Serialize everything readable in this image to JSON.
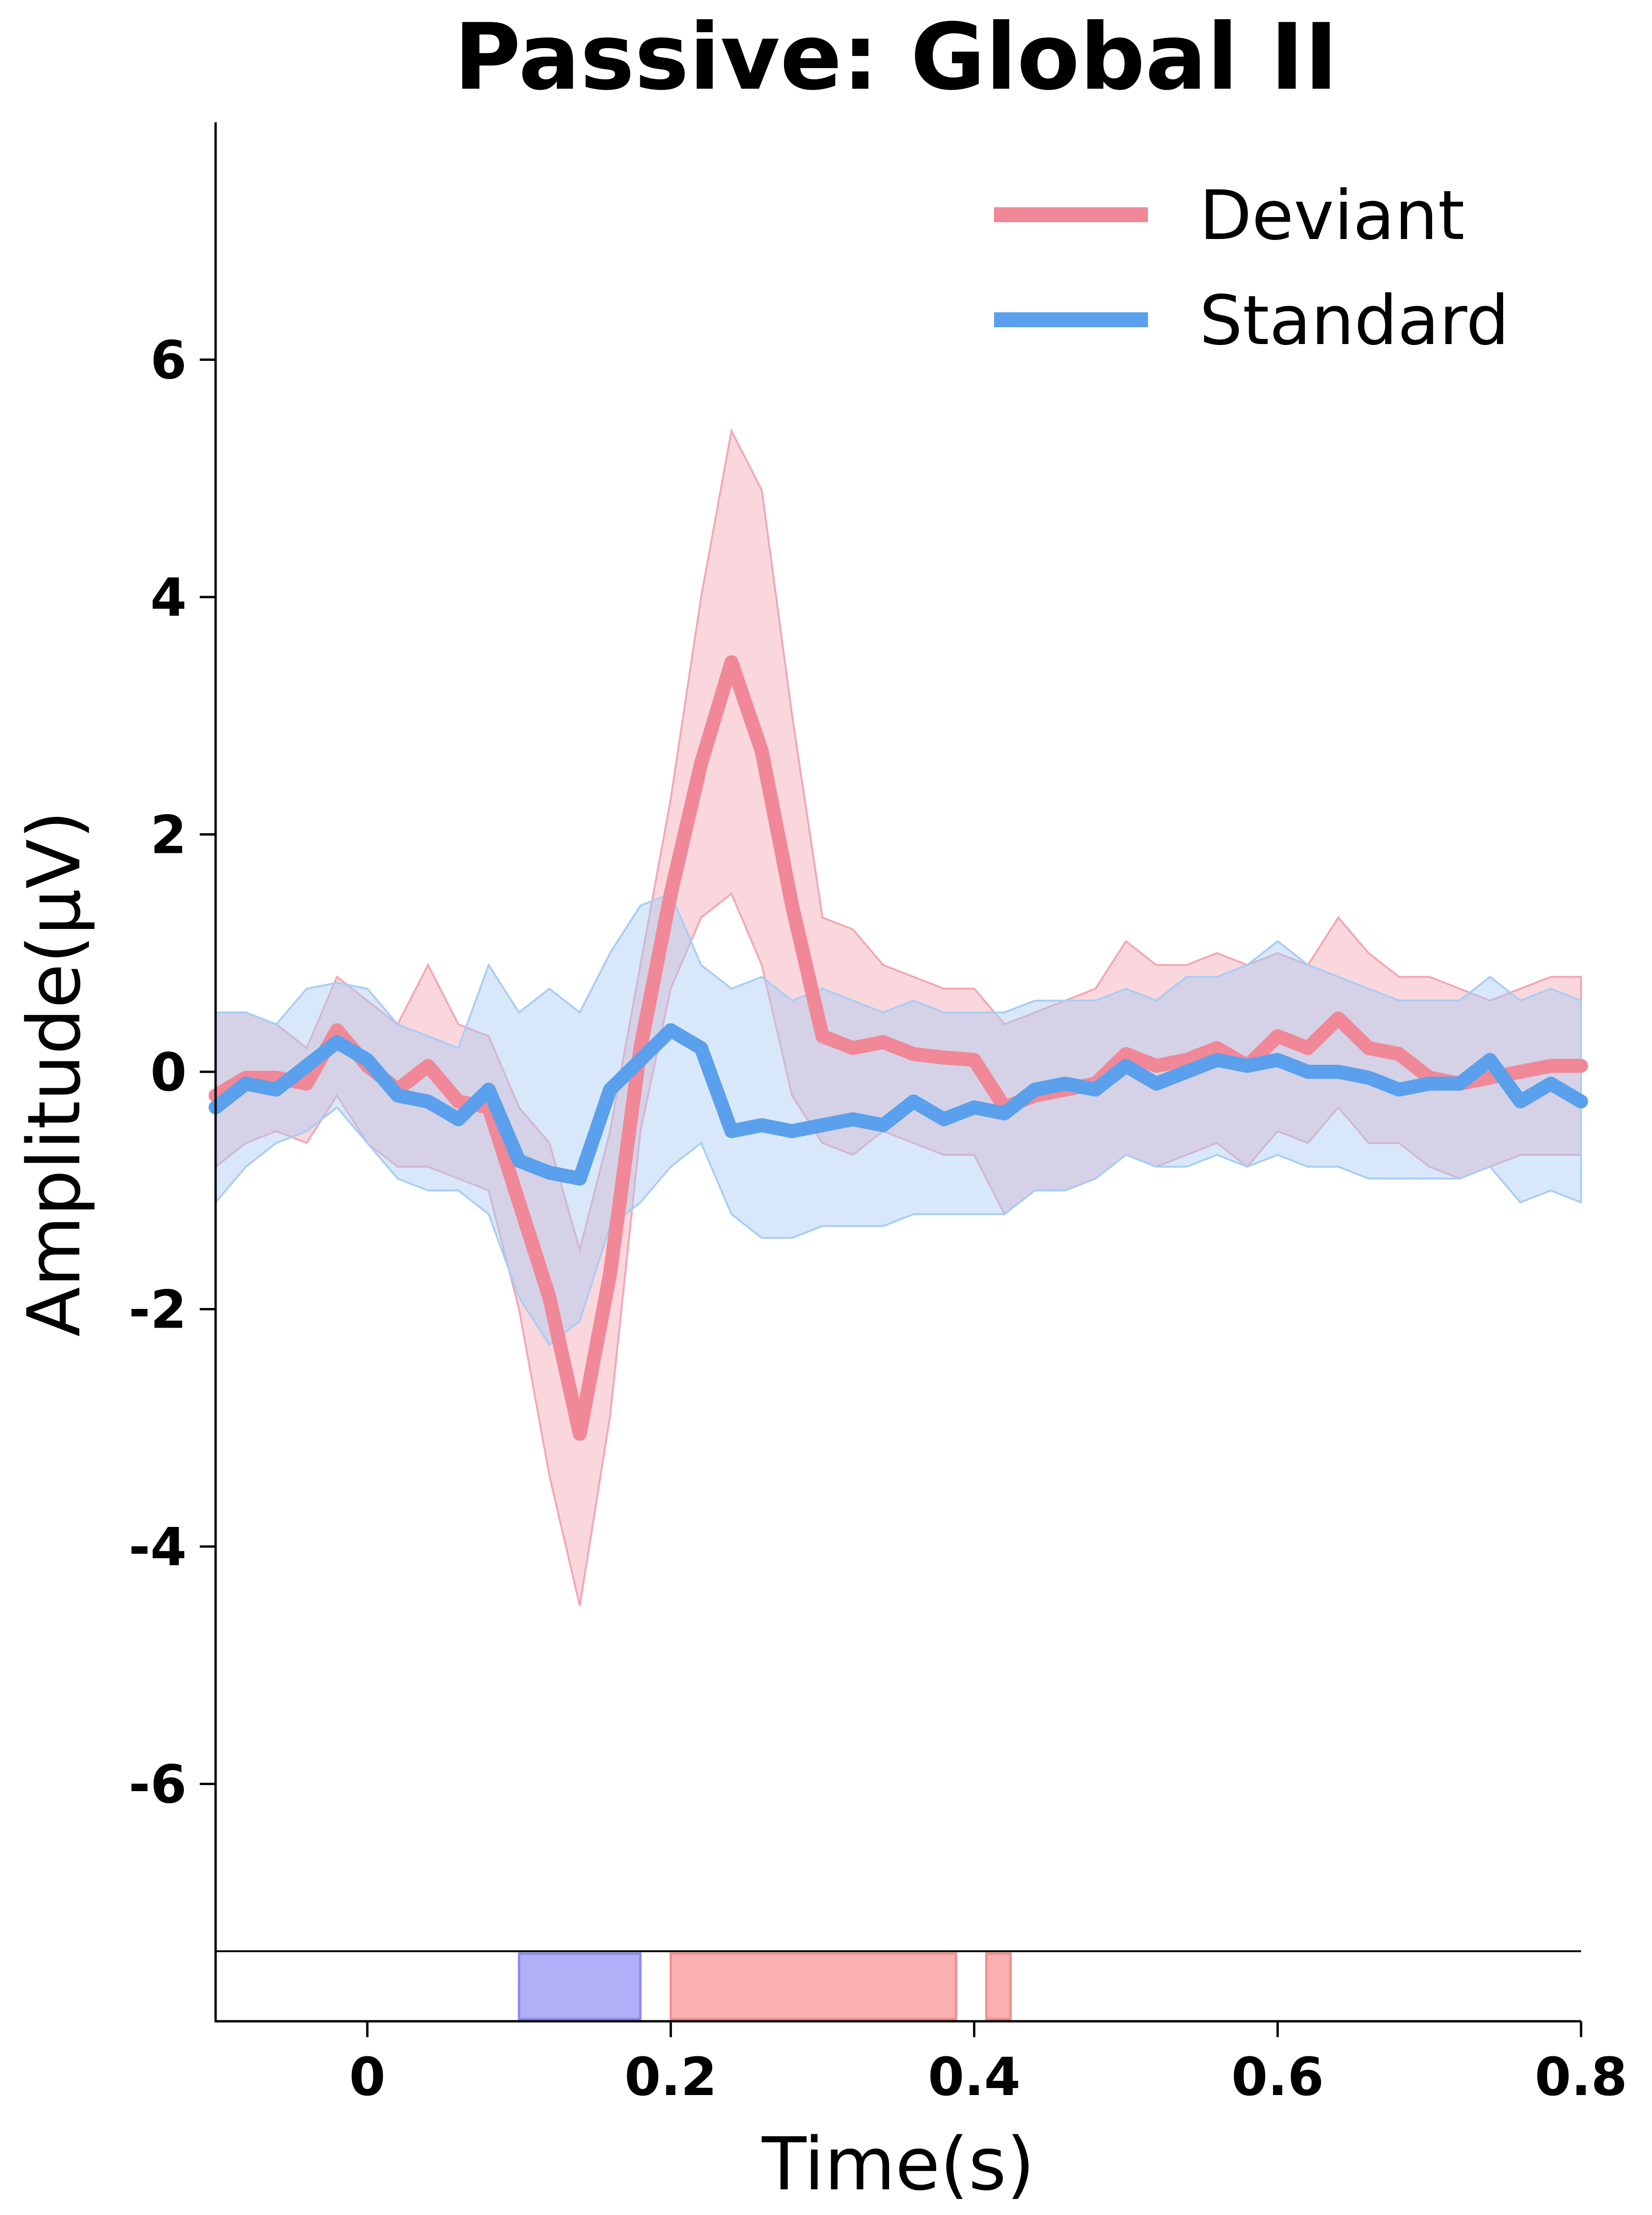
{
  "chart_data": {
    "type": "line",
    "title": "Passive: Global II",
    "xlabel": "Time(s)",
    "ylabel": "Amplitude(μV)",
    "xlim": [
      -0.1,
      0.8
    ],
    "ylim": [
      -8,
      8
    ],
    "x_ticks": [
      0,
      0.2,
      0.4,
      0.6,
      0.8
    ],
    "x_tick_labels": [
      "0",
      "0.2",
      "0.4",
      "0.6",
      "0.8"
    ],
    "y_ticks": [
      6,
      4,
      2,
      0,
      -2,
      -4,
      -6
    ],
    "y_tick_labels": [
      "6",
      "4",
      "2",
      "0",
      "-2",
      "-4",
      "-6"
    ],
    "grid": false,
    "legend_position": "top-right",
    "x": [
      -0.1,
      -0.08,
      -0.06,
      -0.04,
      -0.02,
      0,
      0.02,
      0.04,
      0.06,
      0.08,
      0.1,
      0.12,
      0.14,
      0.16,
      0.18,
      0.2,
      0.22,
      0.24,
      0.26,
      0.28,
      0.3,
      0.32,
      0.34,
      0.36,
      0.38,
      0.4,
      0.42,
      0.44,
      0.46,
      0.48,
      0.5,
      0.52,
      0.54,
      0.56,
      0.58,
      0.6,
      0.62,
      0.64,
      0.66,
      0.68,
      0.7,
      0.72,
      0.74,
      0.76,
      0.78,
      0.8
    ],
    "series": [
      {
        "name": "Deviant",
        "color": "#f08898",
        "band_color": "#f4a6b4",
        "values": [
          -0.2,
          -0.05,
          -0.05,
          -0.1,
          0.35,
          0.05,
          -0.15,
          0.05,
          -0.25,
          -0.3,
          -1.1,
          -1.9,
          -3.05,
          -1.7,
          0.2,
          1.5,
          2.6,
          3.45,
          2.7,
          1.4,
          0.3,
          0.2,
          0.25,
          0.15,
          0.12,
          0.1,
          -0.3,
          -0.2,
          -0.15,
          -0.1,
          0.15,
          0.05,
          0.1,
          0.2,
          0.05,
          0.3,
          0.2,
          0.45,
          0.2,
          0.15,
          -0.05,
          -0.1,
          -0.05,
          0.0,
          0.05,
          0.05
        ],
        "upper": [
          0.5,
          0.5,
          0.4,
          0.2,
          0.8,
          0.6,
          0.4,
          0.9,
          0.4,
          0.3,
          -0.3,
          -0.6,
          -1.5,
          -0.5,
          0.9,
          2.3,
          4.0,
          5.4,
          4.9,
          3.0,
          1.3,
          1.2,
          0.9,
          0.8,
          0.7,
          0.7,
          0.4,
          0.5,
          0.6,
          0.7,
          1.1,
          0.9,
          0.9,
          1.0,
          0.9,
          1.0,
          0.9,
          1.3,
          1.0,
          0.8,
          0.8,
          0.7,
          0.6,
          0.7,
          0.8,
          0.8
        ],
        "lower": [
          -0.8,
          -0.6,
          -0.5,
          -0.6,
          -0.2,
          -0.6,
          -0.8,
          -0.8,
          -0.9,
          -1.0,
          -2.0,
          -3.4,
          -4.5,
          -2.9,
          -0.5,
          0.7,
          1.3,
          1.5,
          0.9,
          -0.2,
          -0.6,
          -0.7,
          -0.5,
          -0.6,
          -0.7,
          -0.7,
          -1.2,
          -1.0,
          -1.0,
          -0.9,
          -0.7,
          -0.8,
          -0.7,
          -0.6,
          -0.8,
          -0.5,
          -0.6,
          -0.3,
          -0.6,
          -0.6,
          -0.8,
          -0.9,
          -0.8,
          -0.7,
          -0.7,
          -0.7
        ]
      },
      {
        "name": "Standard",
        "color": "#5aa0ec",
        "band_color": "#a8cdf4",
        "values": [
          -0.3,
          -0.1,
          -0.15,
          0.05,
          0.25,
          0.1,
          -0.2,
          -0.25,
          -0.4,
          -0.15,
          -0.75,
          -0.85,
          -0.9,
          -0.15,
          0.1,
          0.35,
          0.2,
          -0.5,
          -0.45,
          -0.5,
          -0.45,
          -0.4,
          -0.45,
          -0.25,
          -0.4,
          -0.3,
          -0.35,
          -0.15,
          -0.1,
          -0.15,
          0.05,
          -0.1,
          0.0,
          0.1,
          0.05,
          0.1,
          0.0,
          0.0,
          -0.05,
          -0.15,
          -0.1,
          -0.1,
          0.1,
          -0.25,
          -0.1,
          -0.25
        ],
        "upper": [
          0.5,
          0.5,
          0.4,
          0.7,
          0.75,
          0.7,
          0.4,
          0.3,
          0.2,
          0.9,
          0.5,
          0.7,
          0.5,
          1.0,
          1.4,
          1.5,
          0.9,
          0.7,
          0.8,
          0.6,
          0.7,
          0.6,
          0.5,
          0.6,
          0.5,
          0.5,
          0.5,
          0.6,
          0.6,
          0.6,
          0.7,
          0.6,
          0.8,
          0.8,
          0.9,
          1.1,
          0.9,
          0.8,
          0.7,
          0.6,
          0.6,
          0.6,
          0.8,
          0.6,
          0.7,
          0.6
        ],
        "lower": [
          -1.1,
          -0.8,
          -0.6,
          -0.5,
          -0.3,
          -0.6,
          -0.9,
          -1.0,
          -1.0,
          -1.2,
          -1.9,
          -2.3,
          -2.1,
          -1.3,
          -1.1,
          -0.8,
          -0.6,
          -1.2,
          -1.4,
          -1.4,
          -1.3,
          -1.3,
          -1.3,
          -1.2,
          -1.2,
          -1.2,
          -1.2,
          -1.0,
          -1.0,
          -0.9,
          -0.7,
          -0.8,
          -0.8,
          -0.7,
          -0.8,
          -0.7,
          -0.8,
          -0.8,
          -0.9,
          -0.9,
          -0.9,
          -0.9,
          -0.8,
          -1.1,
          -1.0,
          -1.1
        ]
      }
    ],
    "significance_bars": [
      {
        "start": 0.1,
        "end": 0.18,
        "color": "#b0b0f8",
        "edge": "#8a8aec"
      },
      {
        "start": 0.2,
        "end": 0.388,
        "color": "#fab0b0",
        "edge": "#f08e8e"
      },
      {
        "start": 0.408,
        "end": 0.424,
        "color": "#fab0b0",
        "edge": "#f08e8e"
      }
    ]
  }
}
